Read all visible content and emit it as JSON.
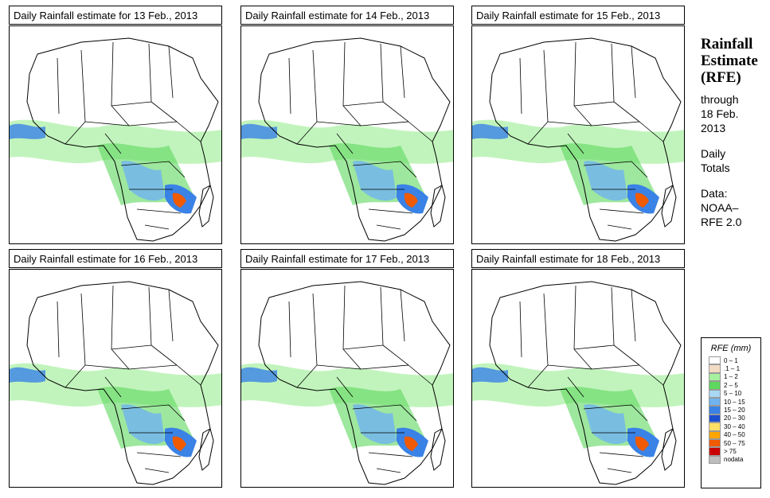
{
  "panels": [
    {
      "title": "Daily Rainfall estimate for  13 Feb., 2013"
    },
    {
      "title": "Daily Rainfall estimate for  14 Feb., 2013"
    },
    {
      "title": "Daily Rainfall estimate for  15 Feb., 2013"
    },
    {
      "title": "Daily Rainfall estimate for  16 Feb., 2013"
    },
    {
      "title": "Daily Rainfall estimate for  17 Feb., 2013"
    },
    {
      "title": "Daily Rainfall estimate for  18 Feb., 2013"
    }
  ],
  "side": {
    "line1": "Rainfall",
    "line2": "Estimate",
    "line3": "(RFE)",
    "through": "through",
    "date1": "18 Feb.",
    "date2": "2013",
    "daily1": "Daily",
    "daily2": "Totals",
    "data1": "Data:",
    "data2": "NOAA–",
    "data3": "RFE 2.0"
  },
  "legend": {
    "title": "RFE (mm)",
    "items": [
      {
        "label": "0 – 1",
        "color": "#ffffff"
      },
      {
        "label": ".1 – 1",
        "color": "#f1dcc3"
      },
      {
        "label": "1 – 2",
        "color": "#a6f0a0"
      },
      {
        "label": "2 – 5",
        "color": "#5ed75e"
      },
      {
        "label": "5 – 10",
        "color": "#a9d8f5"
      },
      {
        "label": "10 – 15",
        "color": "#6fb4f0"
      },
      {
        "label": "15 – 20",
        "color": "#3a82e6"
      },
      {
        "label": "20 – 30",
        "color": "#1c4fd0"
      },
      {
        "label": "30 – 40",
        "color": "#ffe066"
      },
      {
        "label": "40 – 50",
        "color": "#ffa500"
      },
      {
        "label": "50 – 75",
        "color": "#f05a00"
      },
      {
        "label": "> 75",
        "color": "#c80000"
      },
      {
        "label": "nodata",
        "color": "#bdbdbd"
      }
    ]
  }
}
